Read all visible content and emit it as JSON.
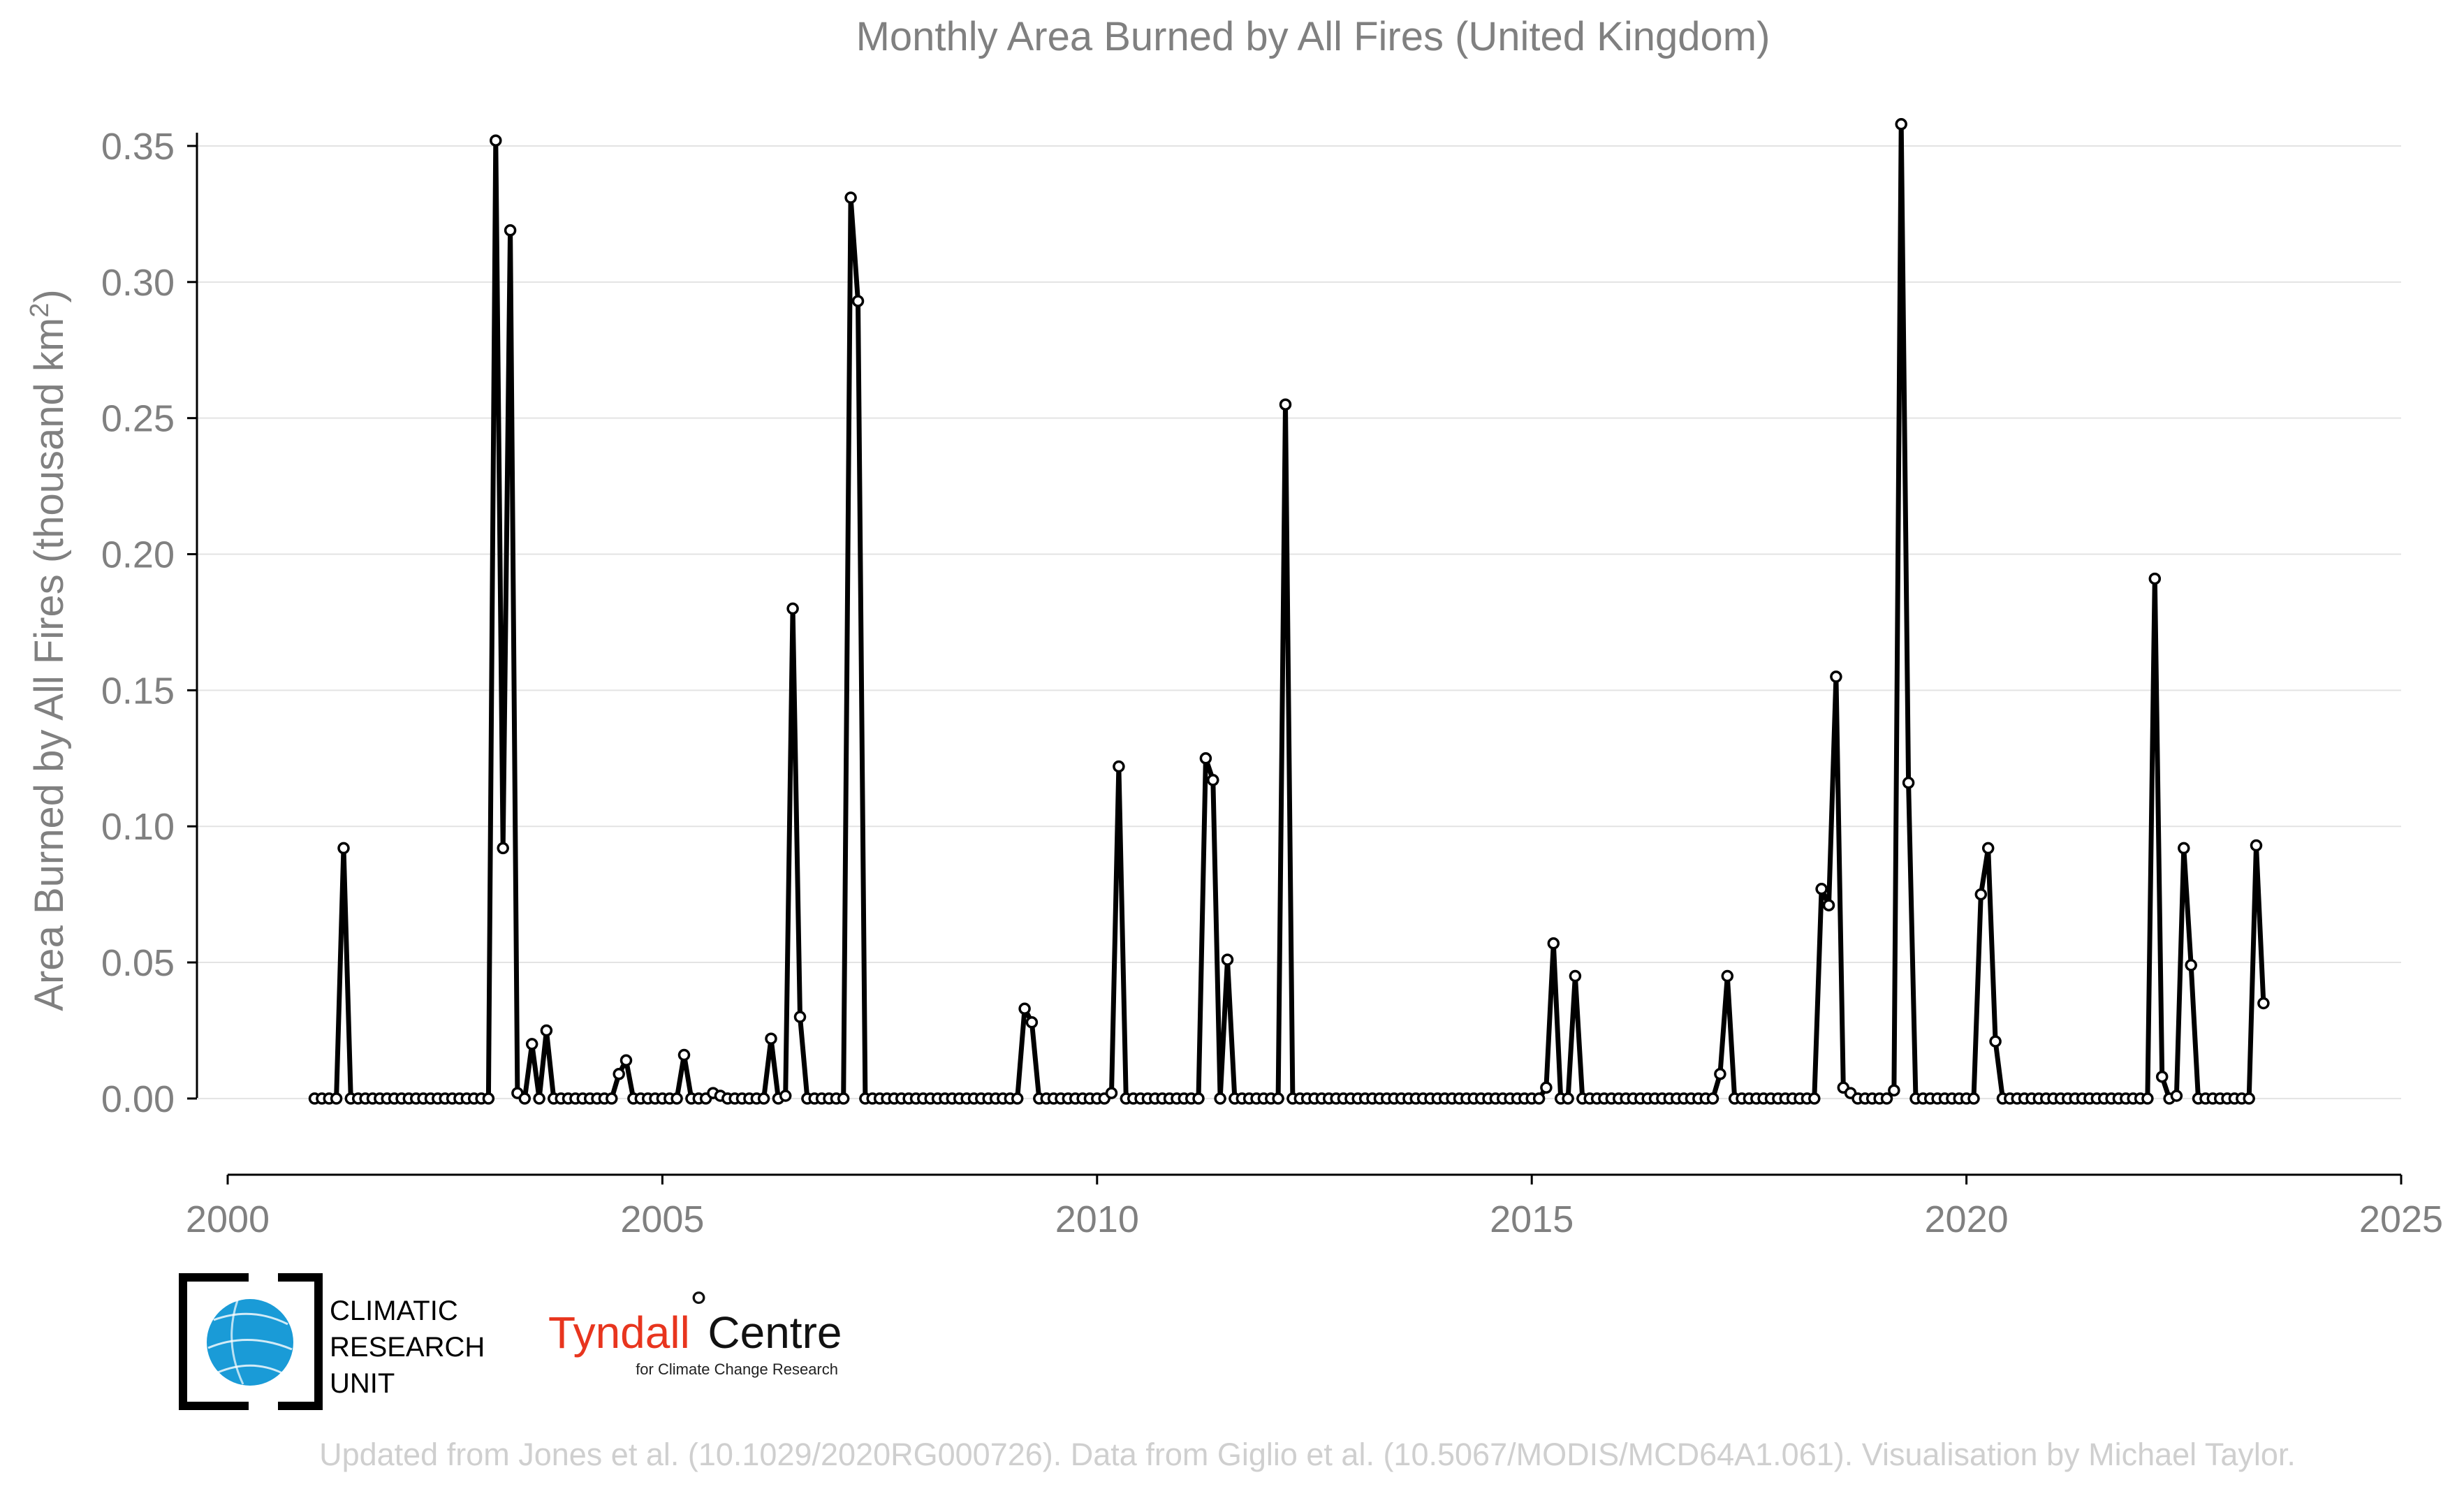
{
  "chart_data": {
    "type": "line",
    "title": "Monthly Area Burned by All Fires (United Kingdom)",
    "ylabel": "Area Burned by All Fires (thousand km",
    "ylabel_sup": "2",
    "ylabel_end": ")",
    "xlabel": "",
    "xlim": [
      2000,
      2025
    ],
    "ylim": [
      -0.028,
      0.36
    ],
    "x_ticks": [
      "2000",
      "2005",
      "2010",
      "2015",
      "2020",
      "2025"
    ],
    "y_ticks": [
      "0.00",
      "0.05",
      "0.10",
      "0.15",
      "0.20",
      "0.25",
      "0.30",
      "0.35"
    ],
    "grid": "horizontal",
    "series_color": "#000000",
    "start": "2001-01",
    "end": "2023-06",
    "series": [
      {
        "values": [
          0,
          0,
          0,
          0,
          0.092,
          0,
          0,
          0,
          0,
          0,
          0,
          0,
          0,
          0,
          0,
          0,
          0,
          0,
          0,
          0,
          0,
          0,
          0,
          0,
          0,
          0.352,
          0.092,
          0.319,
          0.002,
          0,
          0.02,
          0,
          0.025,
          0,
          0,
          0,
          0,
          0,
          0,
          0,
          0,
          0,
          0.009,
          0.014,
          0,
          0,
          0,
          0,
          0,
          0,
          0,
          0.016,
          0,
          0,
          0,
          0.002,
          0.001,
          0,
          0,
          0,
          0,
          0,
          0,
          0.022,
          0,
          0.001,
          0.18,
          0.03,
          0,
          0,
          0,
          0,
          0,
          0,
          0.331,
          0.293,
          0,
          0,
          0,
          0,
          0,
          0,
          0,
          0,
          0,
          0,
          0,
          0,
          0,
          0,
          0,
          0,
          0,
          0,
          0,
          0,
          0,
          0,
          0.033,
          0.028,
          0,
          0,
          0,
          0,
          0,
          0,
          0,
          0,
          0,
          0,
          0.002,
          0.122,
          0,
          0,
          0,
          0,
          0,
          0,
          0,
          0,
          0,
          0,
          0,
          0.125,
          0.117,
          0,
          0.051,
          0,
          0,
          0,
          0,
          0,
          0,
          0,
          0.255,
          0,
          0,
          0,
          0,
          0,
          0,
          0,
          0,
          0,
          0,
          0,
          0,
          0,
          0,
          0,
          0,
          0,
          0,
          0,
          0,
          0,
          0,
          0,
          0,
          0,
          0,
          0,
          0,
          0,
          0,
          0,
          0,
          0,
          0,
          0,
          0.004,
          0.057,
          0,
          0,
          0.045,
          0,
          0,
          0,
          0,
          0,
          0,
          0,
          0,
          0,
          0,
          0,
          0,
          0,
          0,
          0,
          0,
          0,
          0,
          0,
          0.009,
          0.045,
          0,
          0,
          0,
          0,
          0,
          0,
          0,
          0,
          0,
          0,
          0,
          0,
          0.077,
          0.071,
          0.155,
          0.004,
          0.002,
          0,
          0,
          0,
          0,
          0,
          0.003,
          0.358,
          0.116,
          0,
          0,
          0,
          0,
          0,
          0,
          0,
          0,
          0,
          0.075,
          0.092,
          0.021,
          0,
          0,
          0,
          0,
          0,
          0,
          0,
          0,
          0,
          0,
          0,
          0,
          0,
          0,
          0,
          0,
          0,
          0,
          0,
          0,
          0,
          0.191,
          0.008,
          0,
          0.001,
          0.092,
          0.049,
          0,
          0,
          0,
          0,
          0,
          0,
          0,
          0,
          0.093,
          0.035
        ]
      }
    ]
  },
  "logos": {
    "cru": [
      "CLIMATIC",
      "RESEARCH",
      "UNIT"
    ],
    "tyndall_word1": "Tyndall",
    "tyndall_degree": "°",
    "tyndall_word2": "Centre",
    "tyndall_sub": "for Climate Change Research",
    "globe_color": "#1a9bd7"
  },
  "footer": "Updated from Jones et al. (10.1029/2020RG000726). Data from Giglio et al. (10.5067/MODIS/MCD64A1.061). Visualisation by Michael Taylor."
}
